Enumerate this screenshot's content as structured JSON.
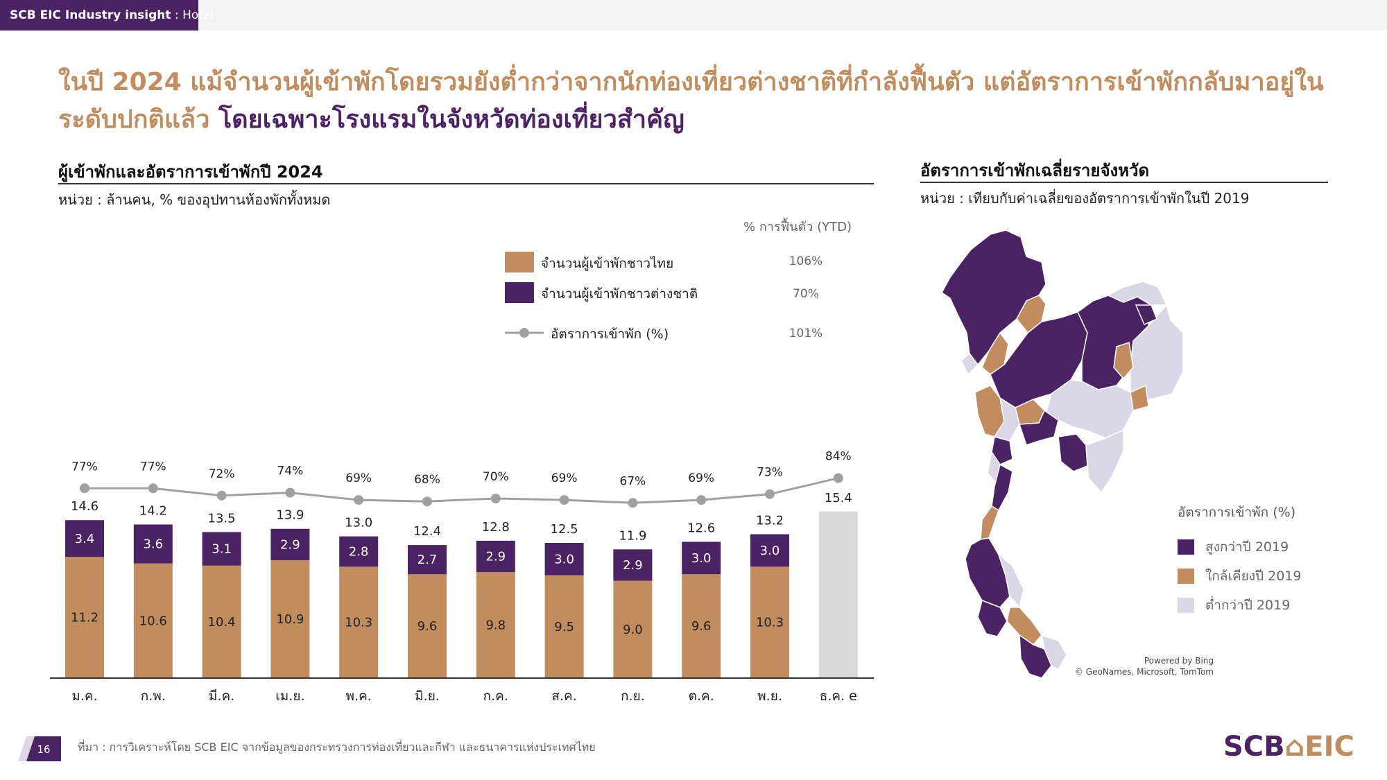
{
  "header": {
    "tag_bold": "SCB EIC Industry insight",
    "tag_rest": " : Hotel"
  },
  "headline": {
    "part1": "ในปี 2024 แม้จำนวนผู้เข้าพักโดยรวมยังต่ำกว่าจากนักท่องเที่ยวต่างชาติที่กำลังฟื้นตัว แต่อัตราการเข้าพักกลับมาอยู่ใน ระดับปกติแล้ว ",
    "part2": "โดยเฉพาะโรงแรมในจังหวัดท่องเที่ยวสำคัญ"
  },
  "left_panel": {
    "title": "ผู้เข้าพักและอัตราการเข้าพักปี 2024",
    "unit": "หน่วย : ล้านคน, % ของอุปทานห้องพักทั้งหมด"
  },
  "right_panel": {
    "title": "อัตราการเข้าพักเฉลี่ยรายจังหวัด",
    "unit": "หน่วย : เทียบกับค่าเฉลี่ยของอัตราการเข้าพักในปี 2019",
    "legend_title": "อัตราการเข้าพัก (%)",
    "legend": [
      {
        "label": "สูงกว่าปี 2019",
        "color": "#4b2263"
      },
      {
        "label": "ใกล้เคียงปี 2019",
        "color": "#c18d5e"
      },
      {
        "label": "ต่ำกว่าปี 2019",
        "color": "#d9d6e6"
      }
    ],
    "map_credit_1": "Powered by Bing",
    "map_credit_2": "© GeoNames, Microsoft, TomTom"
  },
  "chart_data": {
    "type": "bar",
    "categories": [
      "ม.ค.",
      "ก.พ.",
      "มี.ค.",
      "เม.ย.",
      "พ.ค.",
      "มิ.ย.",
      "ก.ค.",
      "ส.ค.",
      "ก.ย.",
      "ต.ค.",
      "พ.ย.",
      "ธ.ค. e"
    ],
    "series": [
      {
        "name": "จำนวนผู้เข้าพักชาวไทย",
        "color": "#c18d5e",
        "values": [
          11.2,
          10.6,
          10.4,
          10.9,
          10.3,
          9.6,
          9.8,
          9.5,
          9.0,
          9.6,
          10.3,
          null
        ],
        "recovery": "106%"
      },
      {
        "name": "จำนวนผู้เข้าพักชาวต่างชาติ",
        "color": "#4b2263",
        "values": [
          3.4,
          3.6,
          3.1,
          2.9,
          2.8,
          2.7,
          2.9,
          3.0,
          2.9,
          3.0,
          3.0,
          null
        ],
        "recovery": "70%"
      },
      {
        "name": "อัตราการเข้าพัก (%)",
        "color": "#a0a0a0",
        "kind": "line",
        "values": [
          77,
          77,
          72,
          74,
          69,
          68,
          70,
          69,
          67,
          69,
          73,
          84
        ],
        "recovery": "101%"
      }
    ],
    "totals": [
      14.6,
      14.2,
      13.5,
      13.9,
      13.0,
      12.4,
      12.8,
      12.5,
      11.9,
      12.6,
      13.2,
      15.4
    ],
    "estimate_color": "#d9d9d9",
    "recovery_header": "% การฟื้นตัว (YTD)",
    "ylim": [
      0,
      16
    ]
  },
  "footer": {
    "page": "16",
    "source": "ที่มา : การวิเคราะห์โดย SCB EIC จากข้อมูลของกระทรวงการท่องเที่ยวและกีฬา และธนาคารแห่งประเทศไทย",
    "logo_a": "SCB",
    "logo_b": "⌂EIC"
  }
}
